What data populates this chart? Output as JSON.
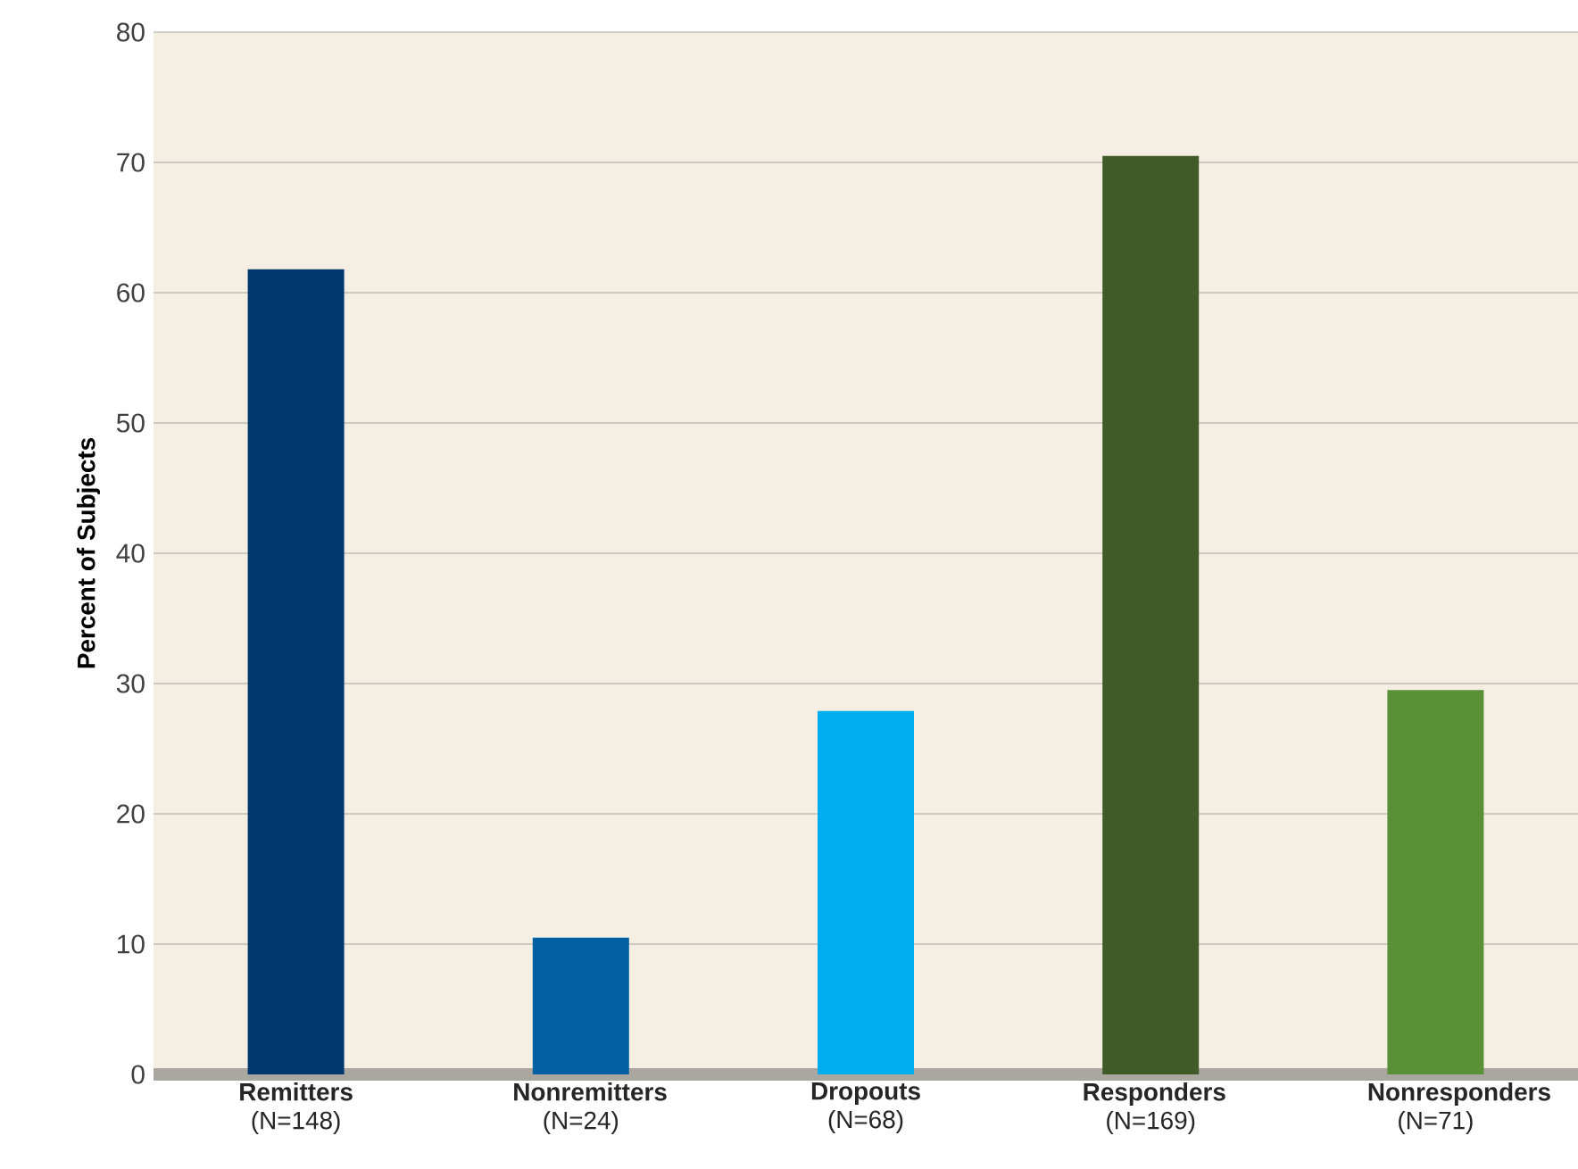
{
  "chart_data": {
    "type": "bar",
    "ylabel": "Percent of Subjects",
    "categories": [
      "**Remitters** (N=148)",
      "**Nonremitters** (N=24)",
      "**Dropouts** (N=68)",
      "**Responders** (N=169)",
      "**Nonresponders** (N=71)"
    ],
    "values": [
      61.8,
      10.5,
      27.9,
      70.5,
      29.5
    ],
    "colors": [
      "#00386e",
      "#0060a0",
      "#00adee",
      "#405a28",
      "#5a9138"
    ],
    "ylim": [
      0,
      80
    ],
    "yticks": [
      0,
      10,
      20,
      30,
      40,
      50,
      60,
      70,
      80
    ],
    "grid": "y"
  }
}
